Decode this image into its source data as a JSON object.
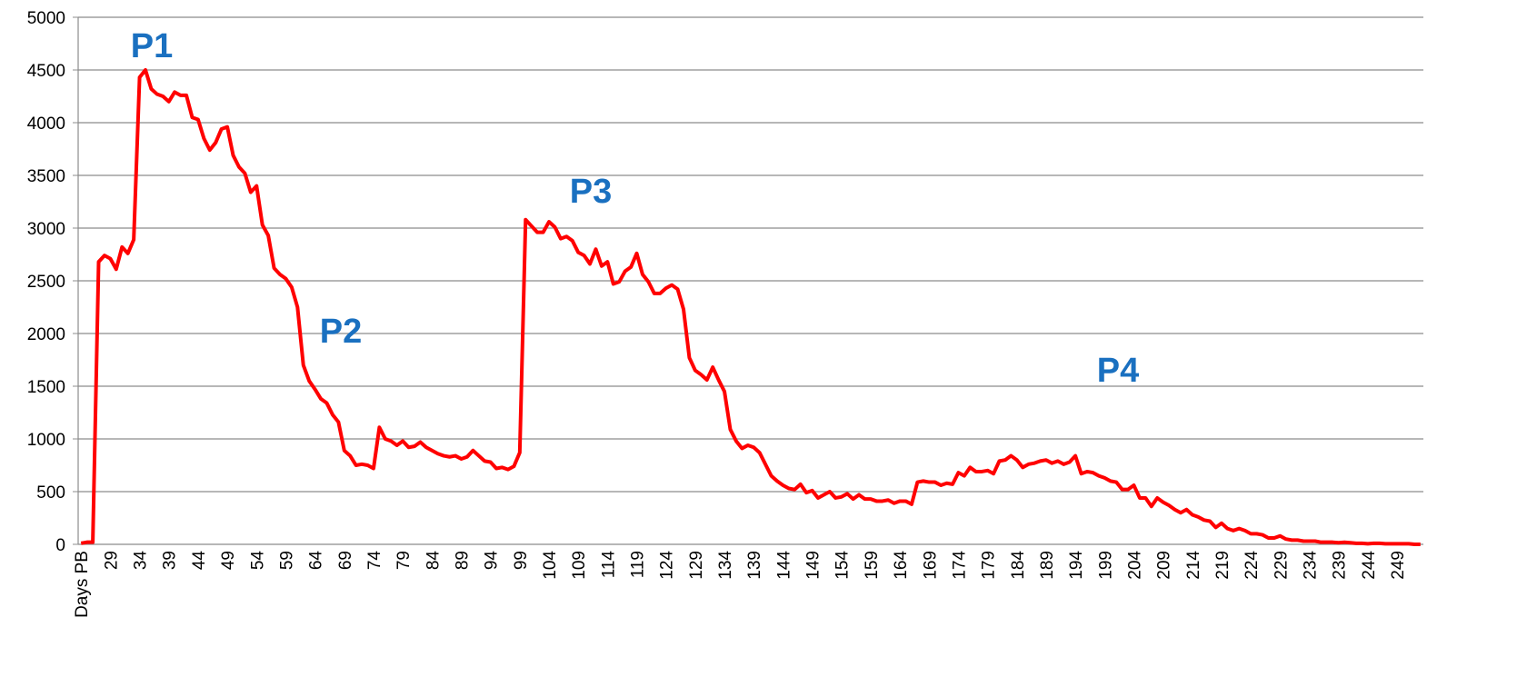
{
  "chart_data": {
    "type": "line",
    "categories": [
      "Days PB",
      null,
      null,
      null,
      null,
      "29",
      null,
      null,
      null,
      null,
      "34",
      null,
      null,
      null,
      null,
      "39",
      null,
      null,
      null,
      null,
      "44",
      null,
      null,
      null,
      null,
      "49",
      null,
      null,
      null,
      null,
      "54",
      null,
      null,
      null,
      null,
      "59",
      null,
      null,
      null,
      null,
      "64",
      null,
      null,
      null,
      null,
      "69",
      null,
      null,
      null,
      null,
      "74",
      null,
      null,
      null,
      null,
      "79",
      null,
      null,
      null,
      null,
      "84",
      null,
      null,
      null,
      null,
      "89",
      null,
      null,
      null,
      null,
      "94",
      null,
      null,
      null,
      null,
      "99",
      null,
      null,
      null,
      null,
      "104",
      null,
      null,
      null,
      null,
      "109",
      null,
      null,
      null,
      null,
      "114",
      null,
      null,
      null,
      null,
      "119",
      null,
      null,
      null,
      null,
      "124",
      null,
      null,
      null,
      null,
      "129",
      null,
      null,
      null,
      null,
      "134",
      null,
      null,
      null,
      null,
      "139",
      null,
      null,
      null,
      null,
      "144",
      null,
      null,
      null,
      null,
      "149",
      null,
      null,
      null,
      null,
      "154",
      null,
      null,
      null,
      null,
      "159",
      null,
      null,
      null,
      null,
      "164",
      null,
      null,
      null,
      null,
      "169",
      null,
      null,
      null,
      null,
      "174",
      null,
      null,
      null,
      null,
      "179",
      null,
      null,
      null,
      null,
      "184",
      null,
      null,
      null,
      null,
      "189",
      null,
      null,
      null,
      null,
      "194",
      null,
      null,
      null,
      null,
      "199",
      null,
      null,
      null,
      null,
      "204",
      null,
      null,
      null,
      null,
      "209",
      null,
      null,
      null,
      null,
      "214",
      null,
      null,
      null,
      null,
      "219",
      null,
      null,
      null,
      null,
      "224",
      null,
      null,
      null,
      null,
      "229",
      null,
      null,
      null,
      null,
      "234",
      null,
      null,
      null,
      null,
      "239",
      null,
      null,
      null,
      null,
      "244",
      null,
      null,
      null,
      null,
      "249",
      null,
      null,
      null,
      null
    ],
    "color": "#ff0000",
    "values": [
      10,
      20,
      20,
      2680,
      2740,
      2710,
      2610,
      2820,
      2760,
      2890,
      4430,
      4500,
      4320,
      4270,
      4250,
      4200,
      4290,
      4260,
      4260,
      4050,
      4030,
      3850,
      3740,
      3810,
      3940,
      3960,
      3690,
      3580,
      3520,
      3340,
      3400,
      3030,
      2930,
      2620,
      2560,
      2520,
      2440,
      2250,
      1700,
      1550,
      1470,
      1380,
      1340,
      1230,
      1160,
      890,
      840,
      750,
      760,
      750,
      720,
      1110,
      1000,
      980,
      940,
      980,
      920,
      930,
      970,
      920,
      890,
      860,
      840,
      830,
      840,
      810,
      830,
      890,
      840,
      790,
      780,
      720,
      730,
      710,
      740,
      870,
      3080,
      3020,
      2960,
      2960,
      3060,
      3010,
      2900,
      2920,
      2880,
      2770,
      2740,
      2660,
      2800,
      2640,
      2680,
      2470,
      2490,
      2590,
      2630,
      2760,
      2560,
      2490,
      2380,
      2380,
      2430,
      2460,
      2420,
      2230,
      1770,
      1650,
      1610,
      1560,
      1680,
      1560,
      1450,
      1090,
      980,
      910,
      940,
      920,
      870,
      760,
      650,
      600,
      560,
      530,
      520,
      570,
      490,
      510,
      440,
      470,
      500,
      440,
      450,
      480,
      430,
      470,
      430,
      430,
      410,
      410,
      420,
      390,
      410,
      410,
      380,
      590,
      600,
      590,
      590,
      560,
      580,
      570,
      680,
      650,
      730,
      690,
      690,
      700,
      670,
      790,
      800,
      840,
      800,
      730,
      760,
      770,
      790,
      800,
      770,
      790,
      760,
      780,
      840,
      670,
      690,
      680,
      650,
      630,
      600,
      590,
      520,
      520,
      560,
      440,
      440,
      360,
      440,
      400,
      370,
      330,
      300,
      330,
      280,
      260,
      230,
      220,
      160,
      200,
      150,
      130,
      150,
      130,
      100,
      100,
      90,
      60,
      60,
      80,
      50,
      40,
      40,
      30,
      30,
      30,
      20,
      20,
      20,
      15,
      20,
      15,
      10,
      10,
      5,
      10,
      10,
      5,
      5,
      5,
      5,
      5,
      0,
      0
    ],
    "annotations": [
      "P1",
      "P2",
      "P3",
      "P4"
    ],
    "annotation_color": "#1a70c0",
    "ylim": [
      0,
      5000
    ],
    "yticks": [
      0,
      500,
      1000,
      1500,
      2000,
      2500,
      3000,
      3500,
      4000,
      4500,
      5000
    ],
    "grid": true
  }
}
